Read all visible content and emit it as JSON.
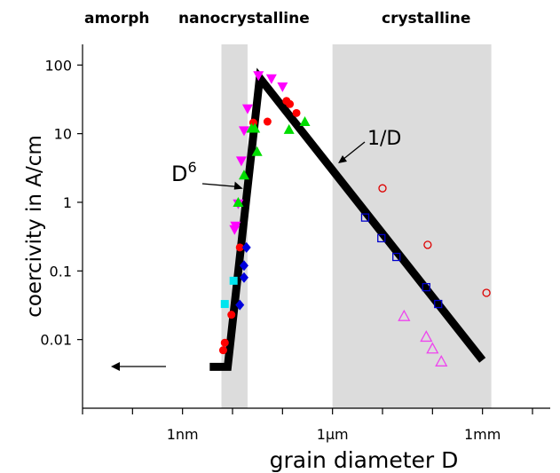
{
  "chart_data": {
    "type": "scatter",
    "xlabel": "grain diameter D",
    "ylabel": "coercivity in A/cm",
    "x_scale": "log",
    "y_scale": "log",
    "xlim_nm": [
      0.01,
      10000000
    ],
    "ylim": [
      0.001,
      200
    ],
    "x_ticks": [
      {
        "value_nm": 1,
        "label": "1nm"
      },
      {
        "value_nm": 1000,
        "label": "1µm"
      },
      {
        "value_nm": 1000000,
        "label": "1mm"
      }
    ],
    "y_ticks": [
      {
        "value": 100,
        "label": "100"
      },
      {
        "value": 10,
        "label": "10"
      },
      {
        "value": 1,
        "label": "1"
      },
      {
        "value": 0.1,
        "label": "0.1"
      },
      {
        "value": 0.01,
        "label": "0.01"
      }
    ],
    "regions": [
      {
        "label": "amorph",
        "range_nm": null,
        "shaded": false
      },
      {
        "label": "nanocrystalline",
        "range_nm": [
          6,
          20
        ],
        "shaded": true
      },
      {
        "label": "crystalline",
        "range_nm": [
          1000,
          1500000
        ],
        "shaded": true
      }
    ],
    "trend_line": {
      "points": [
        [
          3.5,
          0.004
        ],
        [
          8,
          0.004
        ],
        [
          35,
          65
        ],
        [
          1000000,
          0.005
        ]
      ],
      "annotations": [
        {
          "base": "D",
          "sup": "6",
          "at": [
            19,
            2.4
          ]
        },
        {
          "base": "1/D",
          "sup": "",
          "at": [
            1800,
            4.5
          ]
        }
      ]
    },
    "arrow_label": "",
    "series": [
      {
        "marker": "triangle-down",
        "color": "#ff00ff",
        "filled": true,
        "points": [
          [
            11,
            0.4
          ],
          [
            11.5,
            0.45
          ],
          [
            13,
            0.95
          ],
          [
            15,
            4
          ],
          [
            17,
            11
          ],
          [
            20,
            23
          ],
          [
            33,
            70
          ],
          [
            60,
            63
          ],
          [
            100,
            48
          ]
        ]
      },
      {
        "marker": "circle",
        "color": "#ff0000",
        "filled": true,
        "points": [
          [
            6.5,
            0.007
          ],
          [
            7,
            0.009
          ],
          [
            9.5,
            0.023
          ],
          [
            14,
            0.22
          ],
          [
            26,
            14.5
          ],
          [
            50,
            15
          ],
          [
            120,
            30
          ],
          [
            140,
            27
          ],
          [
            190,
            20
          ]
        ]
      },
      {
        "marker": "triangle-up",
        "color": "#00dd00",
        "filled": true,
        "points": [
          [
            13,
            1
          ],
          [
            17,
            2.5
          ],
          [
            24,
            12
          ],
          [
            28,
            12
          ],
          [
            31,
            5.5
          ],
          [
            135,
            11.5
          ],
          [
            280,
            15
          ]
        ]
      },
      {
        "marker": "diamond",
        "color": "#0000dd",
        "filled": true,
        "points": [
          [
            14,
            0.032
          ],
          [
            17,
            0.08
          ],
          [
            17,
            0.12
          ],
          [
            19,
            0.22
          ]
        ]
      },
      {
        "marker": "square",
        "color": "#00e5ee",
        "filled": true,
        "points": [
          [
            7,
            0.033
          ],
          [
            10.5,
            0.072
          ]
        ]
      },
      {
        "marker": "circle",
        "color": "#dd0000",
        "filled": false,
        "points": [
          [
            10000,
            1.6
          ],
          [
            80000,
            0.24
          ],
          [
            1200000,
            0.048
          ]
        ]
      },
      {
        "marker": "square",
        "color": "#0000cc",
        "filled": false,
        "points": [
          [
            4500,
            0.6
          ],
          [
            9500,
            0.3
          ],
          [
            19000,
            0.16
          ],
          [
            75000,
            0.058
          ],
          [
            130000,
            0.033
          ]
        ]
      },
      {
        "marker": "triangle-up",
        "color": "#ee44ee",
        "filled": false,
        "points": [
          [
            27000,
            0.022
          ],
          [
            75000,
            0.011
          ],
          [
            100000,
            0.0074
          ],
          [
            150000,
            0.0048
          ]
        ]
      }
    ]
  }
}
